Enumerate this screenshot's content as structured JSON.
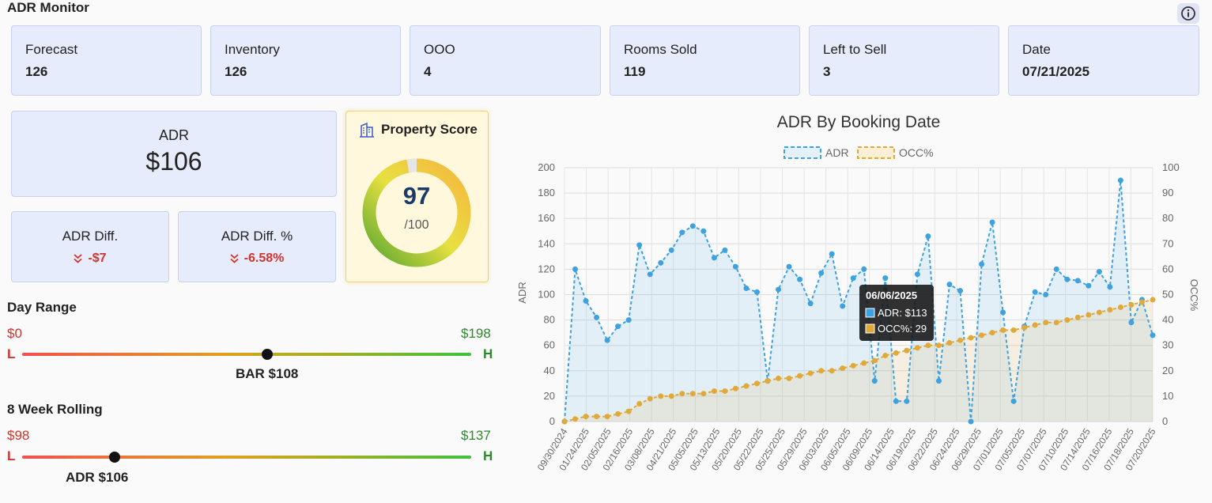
{
  "header": {
    "title": "ADR Monitor",
    "info_icon": "info-circle-icon"
  },
  "stats": [
    {
      "label": "Forecast",
      "value": "126"
    },
    {
      "label": "Inventory",
      "value": "126"
    },
    {
      "label": "OOO",
      "value": "4"
    },
    {
      "label": "Rooms Sold",
      "value": "119"
    },
    {
      "label": "Left to Sell",
      "value": "3"
    },
    {
      "label": "Date",
      "value": "07/21/2025"
    }
  ],
  "adr": {
    "label": "ADR",
    "value": "$106"
  },
  "adr_diff": {
    "label": "ADR Diff.",
    "value": "-$7"
  },
  "adr_diff_pct": {
    "label": "ADR Diff. %",
    "value": "-6.58%"
  },
  "property_score": {
    "title": "Property Score",
    "score": 97,
    "max_label": "/100",
    "max": 100,
    "icon": "building-icon"
  },
  "day_range": {
    "title": "Day Range",
    "min": "$0",
    "max": "$198",
    "low_marker": "L",
    "high_marker": "H",
    "marker_label": "BAR $108",
    "marker_value": 108,
    "range": [
      0,
      198
    ]
  },
  "week_rolling": {
    "title": "8 Week Rolling",
    "min": "$98",
    "max": "$137",
    "low_marker": "L",
    "high_marker": "H",
    "marker_label": "ADR $106",
    "marker_value": 106,
    "range": [
      98,
      137
    ]
  },
  "colors": {
    "adr": "#3fa2e0",
    "occ": "#e0a93a",
    "red": "#d0342c",
    "green": "#2b8a2b"
  },
  "chart_data": {
    "type": "line",
    "title": "ADR By Booking Date",
    "ylabel": "ADR",
    "y2label": "OCC%",
    "ylim": [
      0,
      200
    ],
    "y2lim": [
      0,
      100
    ],
    "yticks": [
      0,
      20,
      40,
      60,
      80,
      100,
      120,
      140,
      160,
      180,
      200
    ],
    "y2ticks": [
      0,
      10,
      20,
      30,
      40,
      50,
      60,
      70,
      80,
      90,
      100
    ],
    "xtick_labels": [
      "09/30/2024",
      "01/24/2025",
      "02/05/2025",
      "02/16/2025",
      "03/08/2025",
      "04/21/2025",
      "05/05/2025",
      "05/13/2025",
      "05/20/2025",
      "05/22/2025",
      "05/25/2025",
      "05/29/2025",
      "06/03/2025",
      "06/05/2025",
      "06/09/2025",
      "06/14/2025",
      "06/19/2025",
      "06/22/2025",
      "06/24/2025",
      "06/29/2025",
      "07/01/2025",
      "07/05/2025",
      "07/07/2025",
      "07/10/2025",
      "07/14/2025",
      "07/16/2025",
      "07/18/2025",
      "07/20/2025"
    ],
    "legend": [
      "ADR",
      "OCC%"
    ],
    "legend_position": "top",
    "grid": true,
    "series": [
      {
        "name": "ADR",
        "axis": "left",
        "values": [
          0,
          120,
          95,
          82,
          64,
          75,
          80,
          139,
          116,
          125,
          135,
          149,
          154,
          150,
          129,
          135,
          122,
          105,
          102,
          32,
          104,
          122,
          112,
          93,
          117,
          132,
          91,
          113,
          120,
          32,
          113,
          16,
          16,
          116,
          146,
          32,
          108,
          103,
          0,
          124,
          157,
          86,
          16,
          75,
          102,
          100,
          120,
          112,
          111,
          107,
          118,
          106,
          190,
          78,
          96,
          68
        ]
      },
      {
        "name": "OCC%",
        "axis": "right",
        "values": [
          0,
          1,
          2,
          2,
          2,
          3,
          4,
          7,
          9,
          10,
          10,
          11,
          11,
          11,
          12,
          12,
          13,
          14,
          15,
          16,
          17,
          17,
          18,
          19,
          20,
          20,
          21,
          22,
          23,
          24,
          26,
          27,
          28,
          29,
          30,
          30,
          31,
          32,
          33,
          34,
          35,
          36,
          36,
          37,
          38,
          39,
          39,
          40,
          41,
          42,
          43,
          44,
          45,
          46,
          47,
          48
        ]
      }
    ],
    "tooltip": {
      "title": "06/06/2025",
      "adr_line": "ADR: $113",
      "occ_line": "OCC%: 29"
    }
  }
}
